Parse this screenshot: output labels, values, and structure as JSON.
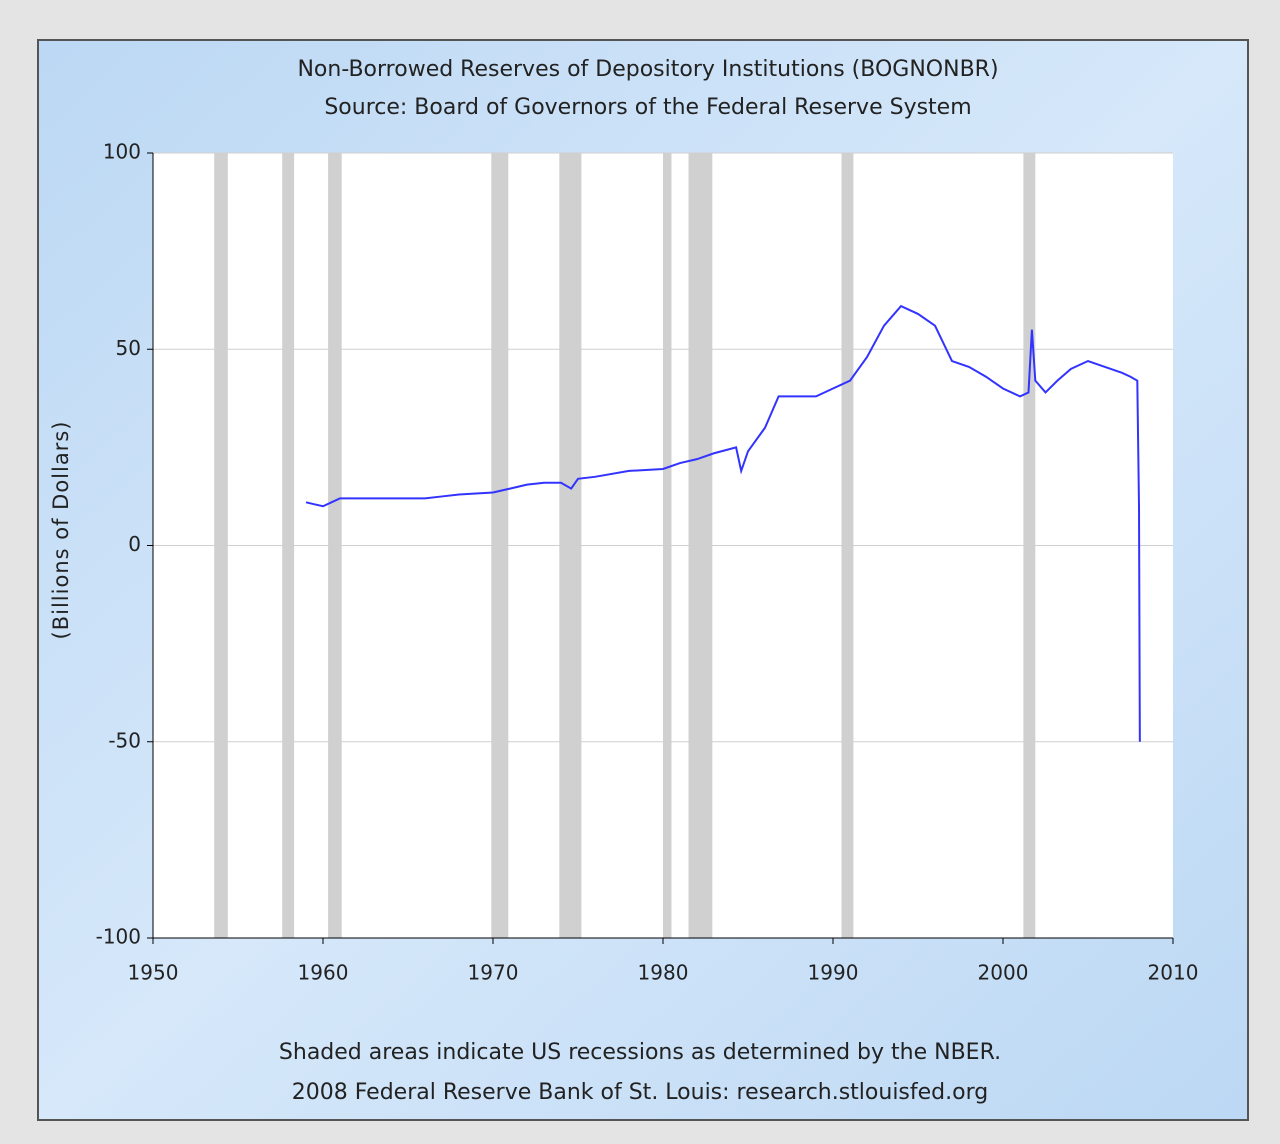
{
  "chart_data": {
    "type": "line",
    "title": "Non-Borrowed Reserves of Depository Institutions (BOGNONBR)",
    "subtitle": "Source: Board of Governors of the Federal Reserve System",
    "y_label": "(Billions of Dollars)",
    "notes": [
      "Shaded areas indicate US recessions as determined by the NBER.",
      "2008 Federal Reserve Bank of St. Louis: research.stlouisfed.org"
    ],
    "x": [
      1959.0,
      1959.5,
      1960.0,
      1960.5,
      1961.0,
      1963.0,
      1965.0,
      1966.0,
      1967.0,
      1968.0,
      1970.0,
      1971.0,
      1972.0,
      1973.0,
      1974.0,
      1974.6,
      1975.0,
      1976.0,
      1978.0,
      1980.0,
      1981.0,
      1982.0,
      1983.0,
      1984.3,
      1984.6,
      1985.0,
      1986.0,
      1986.8,
      1988.0,
      1989.0,
      1990.0,
      1991.0,
      1992.0,
      1993.0,
      1994.0,
      1995.0,
      1996.0,
      1997.0,
      1998.0,
      1999.0,
      2000.0,
      2001.0,
      2001.5,
      2001.7,
      2001.9,
      2002.5,
      2003.2,
      2004.0,
      2005.0,
      2006.0,
      2007.0,
      2007.5,
      2007.9,
      2008.0,
      2008.05
    ],
    "values": [
      11,
      10.5,
      10,
      11,
      12,
      12,
      12,
      12,
      12.5,
      13,
      13.5,
      14.5,
      15.5,
      16,
      16,
      14.5,
      17,
      17.5,
      19,
      19.5,
      21,
      22,
      23.5,
      25,
      19,
      24,
      30,
      38,
      38,
      38,
      40,
      42,
      48,
      56,
      61,
      59,
      56,
      47,
      45.5,
      43,
      40,
      38,
      39,
      55,
      42,
      39,
      42,
      45,
      47,
      45.5,
      44,
      43,
      42,
      10,
      -50
    ],
    "color": "#3333ff",
    "recessions": [
      [
        1953.6,
        1954.4
      ],
      [
        1957.6,
        1958.3
      ],
      [
        1960.3,
        1961.1
      ],
      [
        1969.9,
        1970.9
      ],
      [
        1973.9,
        1975.2
      ],
      [
        1980.0,
        1980.5
      ],
      [
        1981.5,
        1982.9
      ],
      [
        1990.5,
        1991.2
      ],
      [
        2001.2,
        2001.9
      ]
    ],
    "recession_color": "#d0d0d0",
    "xlim": [
      1950,
      2010
    ],
    "xticks": [
      1950,
      1960,
      1970,
      1980,
      1990,
      2000,
      2010
    ],
    "ylim": [
      -100,
      100
    ],
    "yticks": [
      -100,
      -50,
      0,
      50,
      100
    ],
    "grid": true
  }
}
